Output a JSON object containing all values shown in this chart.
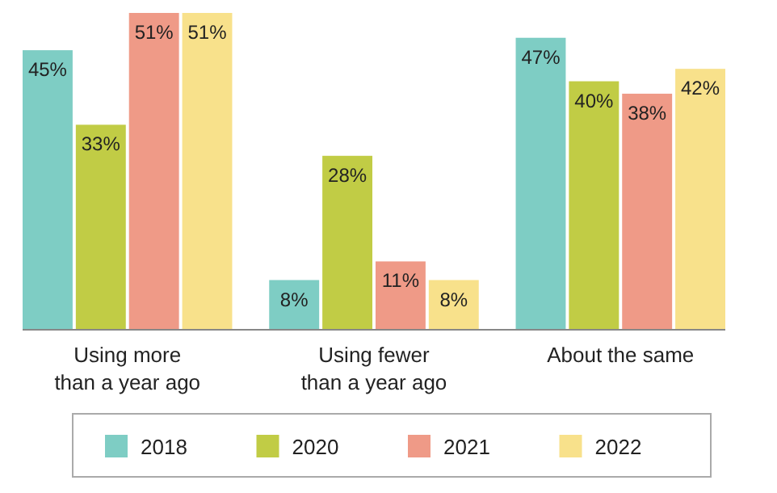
{
  "chart_data": {
    "type": "bar",
    "categories": [
      "Using more than a year ago",
      "Using fewer than a year ago",
      "About the same"
    ],
    "series": [
      {
        "name": "2018",
        "color": "#7ecdc4",
        "values": [
          45,
          8,
          47
        ],
        "value_labels": [
          "45%",
          "8%",
          "47%"
        ]
      },
      {
        "name": "2020",
        "color": "#c1cc45",
        "values": [
          33,
          28,
          40
        ],
        "value_labels": [
          "33%",
          "28%",
          "40%"
        ]
      },
      {
        "name": "2021",
        "color": "#ef9a87",
        "values": [
          51,
          11,
          38
        ],
        "value_labels": [
          "51%",
          "11%",
          "38%"
        ]
      },
      {
        "name": "2022",
        "color": "#f8e18b",
        "values": [
          51,
          8,
          42
        ],
        "value_labels": [
          "51%",
          "8%",
          "42%"
        ]
      }
    ],
    "legend": "bottom"
  }
}
